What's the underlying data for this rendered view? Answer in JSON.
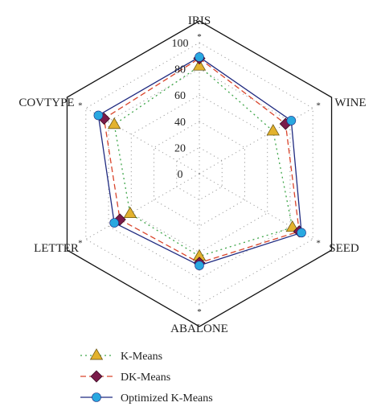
{
  "chart_data": {
    "type": "radar",
    "title": "",
    "categories": [
      "IRIS",
      "WINE",
      "SEED",
      "ABALONE",
      "LETTER",
      "COVTYPE"
    ],
    "rlim": [
      0,
      100
    ],
    "r_ticks": [
      "0",
      "20",
      "40",
      "60",
      "80",
      "100"
    ],
    "grid": true,
    "legend_position": "bottom-left",
    "series": [
      {
        "name": "K-Means",
        "values": [
          82,
          65,
          82,
          63,
          61,
          75
        ],
        "color": "#3fa64a",
        "marker": "triangle",
        "marker_color": "#e3b22e",
        "line": "dotted"
      },
      {
        "name": "DK-Means",
        "values": [
          88,
          76,
          88,
          68,
          70,
          84
        ],
        "color": "#d9442b",
        "marker": "diamond",
        "marker_color": "#7a1b4a",
        "line": "dashed"
      },
      {
        "name": "Optimized K-Means",
        "values": [
          89,
          81,
          90,
          70,
          75,
          89
        ],
        "color": "#1f2a80",
        "marker": "circle",
        "marker_color": "#29a8e0",
        "line": "solid"
      }
    ]
  }
}
